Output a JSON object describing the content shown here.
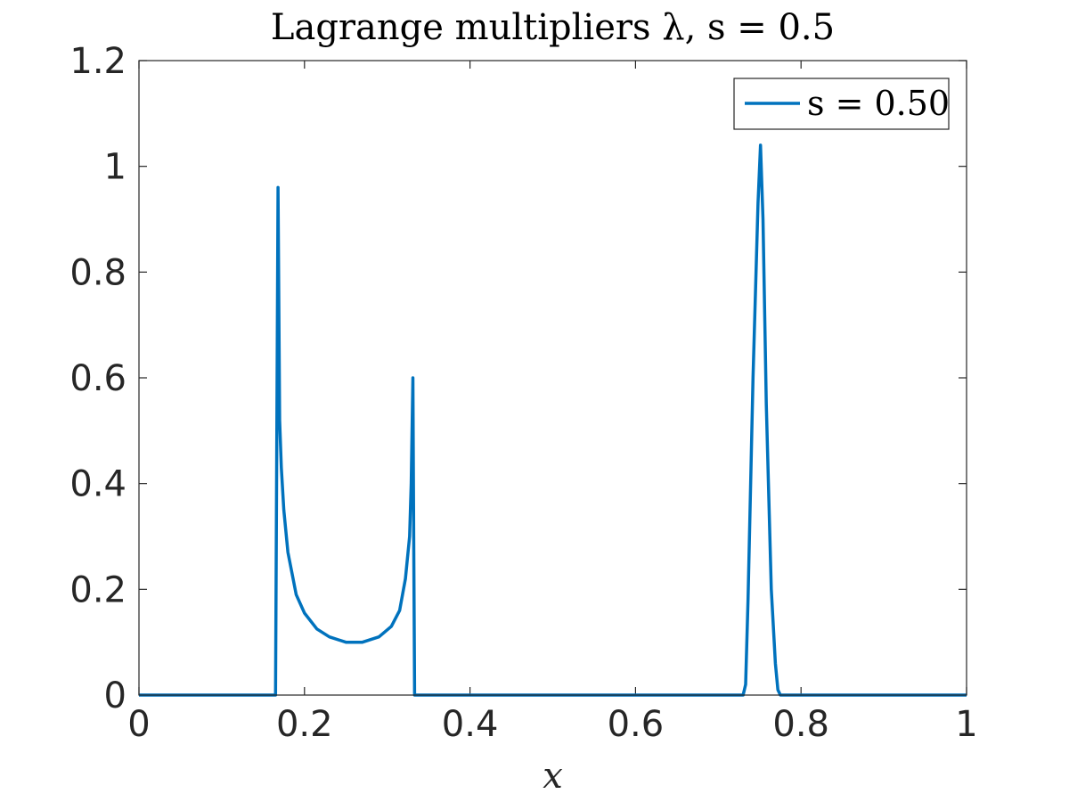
{
  "chart_data": {
    "type": "line",
    "title": "Lagrange multipliers λ, s = 0.5",
    "xlabel": "x",
    "ylabel": "",
    "xlim": [
      0,
      1
    ],
    "ylim": [
      0,
      1.2
    ],
    "xticks": [
      0,
      0.2,
      0.4,
      0.6,
      0.8,
      1
    ],
    "xtick_labels": [
      "0",
      "0.2",
      "0.4",
      "0.6",
      "0.8",
      "1"
    ],
    "yticks": [
      0,
      0.2,
      0.4,
      0.6,
      0.8,
      1,
      1.2
    ],
    "ytick_labels": [
      "0",
      "0.2",
      "0.4",
      "0.6",
      "0.8",
      "1",
      "1.2"
    ],
    "grid": false,
    "legend_position": "top-right",
    "series": [
      {
        "name": "s = 0.50",
        "color": "#0072BD",
        "x": [
          0,
          0.16,
          0.165,
          0.168,
          0.17,
          0.172,
          0.175,
          0.18,
          0.19,
          0.2,
          0.215,
          0.23,
          0.25,
          0.27,
          0.29,
          0.305,
          0.315,
          0.322,
          0.327,
          0.329,
          0.331,
          0.332,
          0.333,
          0.335,
          0.4,
          0.6,
          0.73,
          0.733,
          0.736,
          0.742,
          0.748,
          0.751,
          0.754,
          0.758,
          0.764,
          0.769,
          0.772,
          0.775,
          0.8,
          1
        ],
        "y": [
          0,
          0,
          0,
          0.96,
          0.52,
          0.43,
          0.35,
          0.27,
          0.19,
          0.155,
          0.125,
          0.11,
          0.1,
          0.1,
          0.11,
          0.13,
          0.16,
          0.22,
          0.3,
          0.4,
          0.6,
          0.3,
          0,
          0,
          0,
          0,
          0,
          0.02,
          0.18,
          0.6,
          0.93,
          1.04,
          0.9,
          0.55,
          0.2,
          0.06,
          0.01,
          0,
          0,
          0
        ]
      }
    ]
  }
}
